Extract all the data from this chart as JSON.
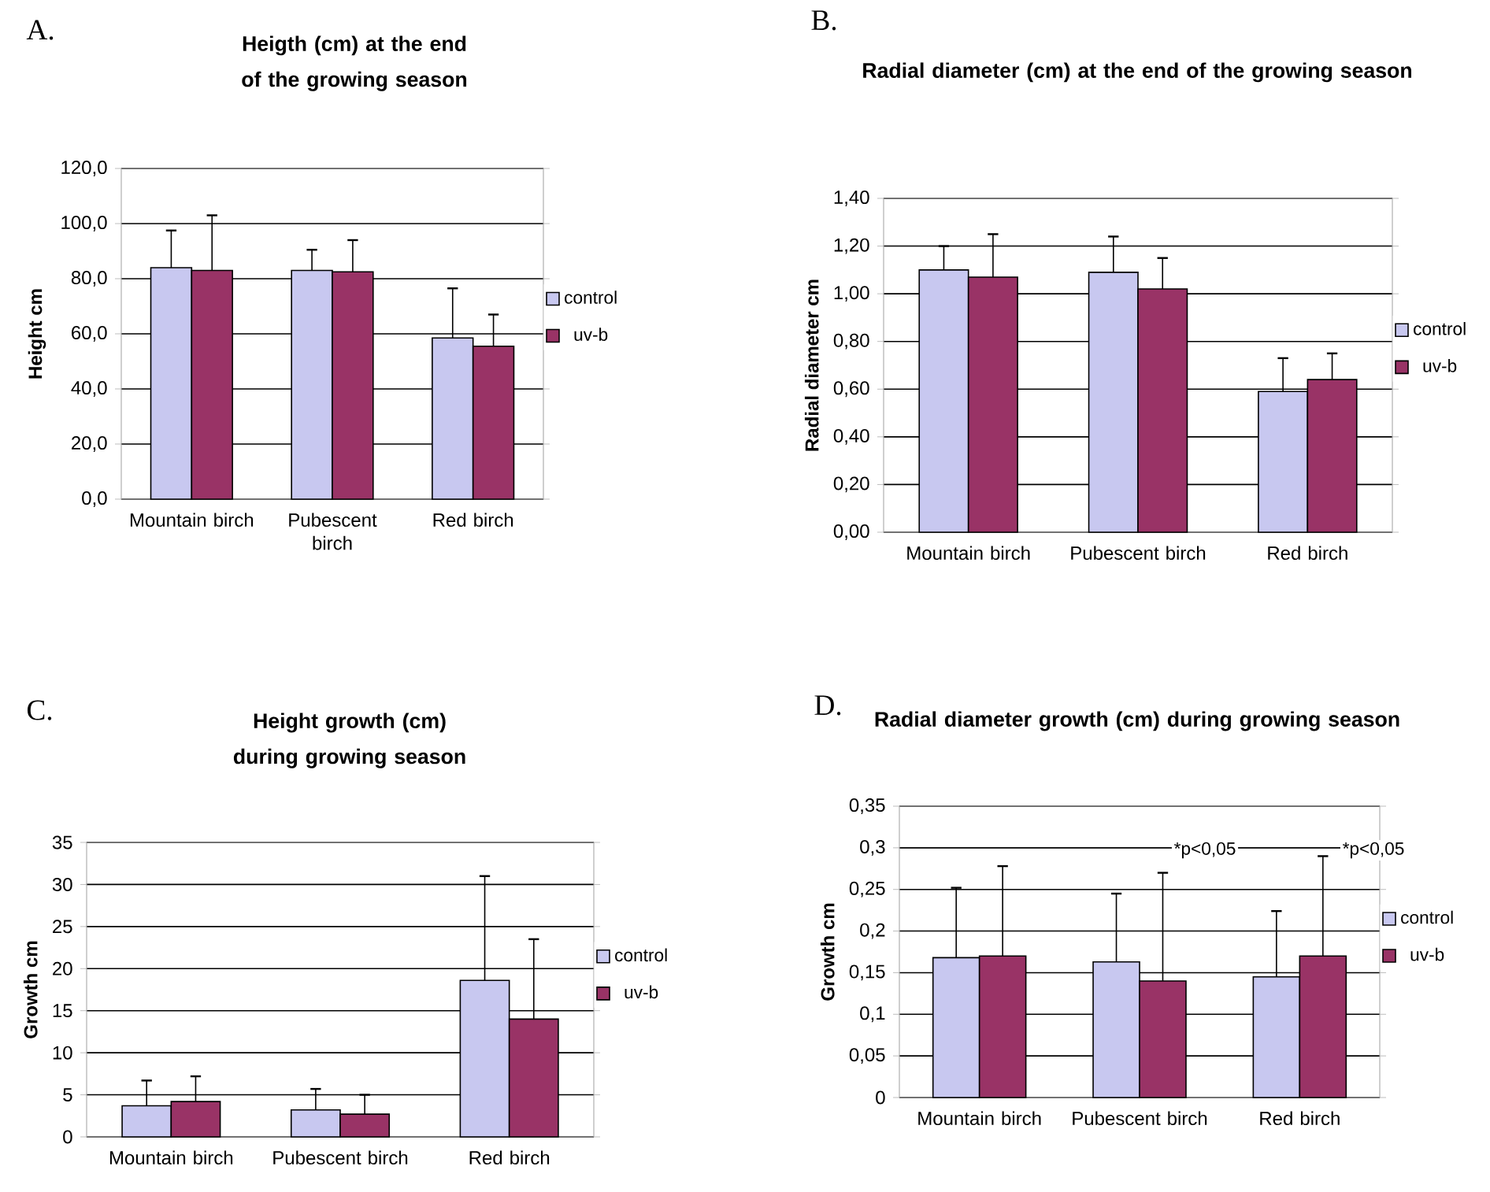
{
  "chart_data": [
    {
      "type": "bar",
      "title": "Heigth (cm) at the end of the growing season",
      "annotations": [
        "A."
      ],
      "categories": [
        "Mountain birch",
        "Pubescent birch",
        "Red birch"
      ],
      "ylabel": "Height cm",
      "ylim": [
        0,
        120
      ],
      "yticks": [
        {
          "value": 0,
          "label": "0,0"
        },
        {
          "value": 20,
          "label": "20,0"
        },
        {
          "value": 40,
          "label": "40,0"
        },
        {
          "value": 60,
          "label": "60,0"
        },
        {
          "value": 80,
          "label": "80,0"
        },
        {
          "value": 100,
          "label": "100,0"
        },
        {
          "value": 120,
          "label": "120,0"
        }
      ],
      "grid": "y",
      "legend": "right",
      "series": [
        {
          "name": "control",
          "color": "#c8c8f0",
          "values": [
            84,
            83,
            58.5
          ],
          "errors": [
            [
              84,
              97.5
            ],
            [
              83,
              90.5
            ],
            [
              58.5,
              76.5
            ]
          ]
        },
        {
          "name": "uv-b",
          "color": "#993366",
          "values": [
            83,
            82.5,
            55.5
          ],
          "errors": [
            [
              83,
              103
            ],
            [
              82.5,
              94
            ],
            [
              55.5,
              67
            ]
          ]
        }
      ]
    },
    {
      "type": "bar",
      "title": "Radial diameter (cm) at the end of the growing season",
      "annotations": [
        "B."
      ],
      "categories": [
        "Mountain birch",
        "Pubescent birch",
        "Red birch"
      ],
      "ylabel": "Radial diameter cm",
      "ylim": [
        0,
        1.4
      ],
      "yticks": [
        {
          "value": 0,
          "label": "0,00"
        },
        {
          "value": 0.2,
          "label": "0,20"
        },
        {
          "value": 0.4,
          "label": "0,40"
        },
        {
          "value": 0.6,
          "label": "0,60"
        },
        {
          "value": 0.8,
          "label": "0,80"
        },
        {
          "value": 1.0,
          "label": "1,00"
        },
        {
          "value": 1.2,
          "label": "1,20"
        },
        {
          "value": 1.4,
          "label": "1,40"
        }
      ],
      "grid": "y",
      "legend": "right",
      "series": [
        {
          "name": "control",
          "color": "#c8c8f0",
          "values": [
            1.1,
            1.09,
            0.59
          ],
          "errors": [
            [
              1.1,
              1.2
            ],
            [
              1.09,
              1.24
            ],
            [
              0.59,
              0.73
            ]
          ]
        },
        {
          "name": "uv-b",
          "color": "#993366",
          "values": [
            1.07,
            1.02,
            0.64
          ],
          "errors": [
            [
              1.07,
              1.25
            ],
            [
              1.02,
              1.15
            ],
            [
              0.64,
              0.75
            ]
          ]
        }
      ]
    },
    {
      "type": "bar",
      "title": "Height growth (cm) during growing season",
      "annotations": [
        "C."
      ],
      "categories": [
        "Mountain birch",
        "Pubescent birch",
        "Red birch"
      ],
      "ylabel": "Growth cm",
      "ylim": [
        0,
        35
      ],
      "yticks": [
        0,
        5,
        10,
        15,
        20,
        25,
        30,
        35
      ],
      "grid": "y",
      "legend": "right",
      "series": [
        {
          "name": "control",
          "color": "#c8c8f0",
          "values": [
            3.7,
            3.2,
            18.6
          ],
          "errors": [
            [
              3.7,
              6.7
            ],
            [
              3.2,
              5.7
            ],
            [
              18.6,
              31
            ]
          ]
        },
        {
          "name": "uv-b",
          "color": "#993366",
          "values": [
            4.2,
            2.7,
            14
          ],
          "errors": [
            [
              4.2,
              7.2
            ],
            [
              2.7,
              5
            ],
            [
              14,
              23.5
            ]
          ]
        }
      ]
    },
    {
      "type": "bar",
      "title": "Radial diameter growth (cm) during growing season",
      "annotations": [
        "D.",
        "*p<0,05",
        "*p<0,05"
      ],
      "categories": [
        "Mountain birch",
        "Pubescent birch",
        "Red birch"
      ],
      "ylabel": "Growth cm",
      "ylim": [
        0,
        0.35
      ],
      "yticks": [
        0,
        {
          "value": 0.05,
          "label": "0,05"
        },
        {
          "value": 0.1,
          "label": "0,1"
        },
        {
          "value": 0.15,
          "label": "0,15"
        },
        {
          "value": 0.2,
          "label": "0,2"
        },
        {
          "value": 0.25,
          "label": "0,25"
        },
        {
          "value": 0.3,
          "label": "0,3"
        },
        {
          "value": 0.35,
          "label": "0,35"
        }
      ],
      "grid": "y",
      "legend": "right",
      "series": [
        {
          "name": "control",
          "color": "#c8c8f0",
          "values": [
            0.168,
            0.163,
            0.145
          ],
          "errors": [
            [
              0.168,
              0.252
            ],
            [
              0.163,
              0.245
            ],
            [
              0.145,
              0.224
            ]
          ]
        },
        {
          "name": "uv-b",
          "color": "#993366",
          "values": [
            0.17,
            0.14,
            0.17
          ],
          "errors": [
            [
              0.17,
              0.278
            ],
            [
              0.14,
              0.27
            ],
            [
              0.17,
              0.29
            ]
          ]
        }
      ]
    }
  ]
}
